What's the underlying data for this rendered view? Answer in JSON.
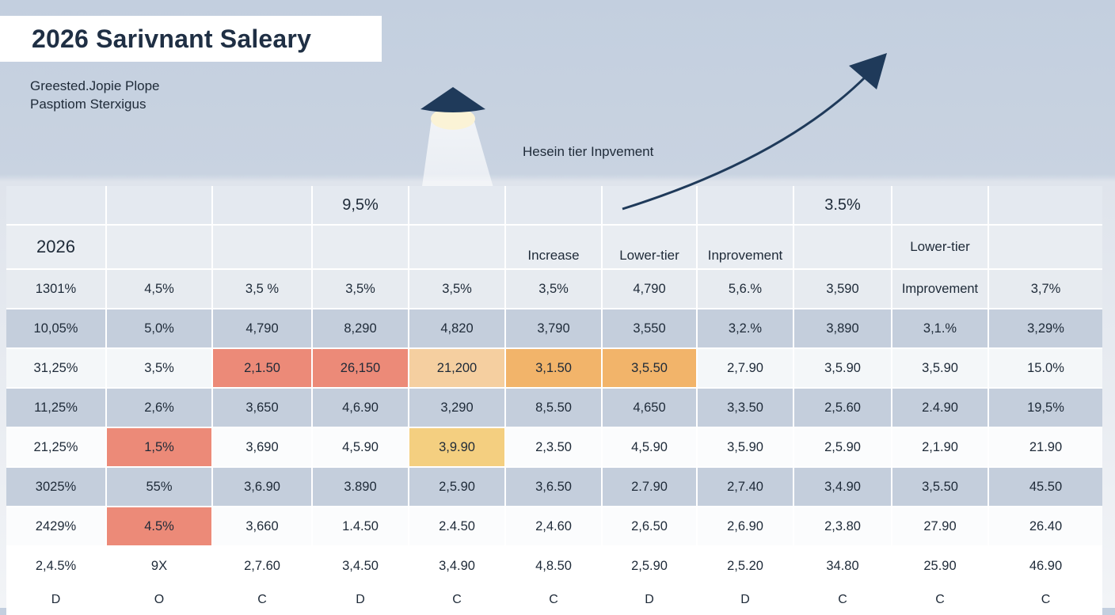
{
  "title": "2026 Sarivnant Saleary",
  "subtitle_lines": [
    "Greested.Jopie Plope",
    "Pasptiom Sterxigus"
  ],
  "annotation": "Hesein tier Inpvement",
  "colors": {
    "title_text": "#1f2f44",
    "arrow": "#1f3a5a",
    "lamp": "#1f3a5a",
    "red": "#ec8a78",
    "orange": "#f2b46a",
    "peach": "#f5cfa0",
    "yellow": "#f4cf80"
  },
  "icons": [
    "lamp-icon",
    "trend-arrow-icon"
  ],
  "chart_data": {
    "type": "table",
    "title": "2026 Sarivnant Saleary",
    "header_row_1": [
      "",
      "",
      "",
      "9,5%",
      "",
      "",
      "",
      "",
      "3.5%",
      "",
      ""
    ],
    "header_row_2": [
      "2026",
      "",
      "",
      "",
      "",
      "Increase",
      "Lower-tier",
      "Inprovement",
      "",
      "Lower-tier",
      ""
    ],
    "rows": [
      [
        "1301%",
        "4,5%",
        "3,5 %",
        "3,5%",
        "3,5%",
        "3,5%",
        "4,790",
        "5,6.%",
        "3,590",
        "Improvement",
        "3,7%"
      ],
      [
        "10,05%",
        "5,0%",
        "4,790",
        "8,290",
        "4,820",
        "3,790",
        "3,550",
        "3,2.%",
        "3,890",
        "3,1.%",
        "3,29%"
      ],
      [
        "31,25%",
        "3,5%",
        "2,1.50",
        "26,150",
        "21,200",
        "3,1.50",
        "3,5.50",
        "2,7.90",
        "3,5.90",
        "3,5.90",
        "15.0%"
      ],
      [
        "11,25%",
        "2,6%",
        "3,650",
        "4,6.90",
        "3,290",
        "8,5.50",
        "4,650",
        "3,3.50",
        "2,5.60",
        "2.4.90",
        "19,5%"
      ],
      [
        "21,25%",
        "1,5%",
        "3,690",
        "4,5.90",
        "3,9.90",
        "2,3.50",
        "4,5.90",
        "3,5.90",
        "2,5.90",
        "2,1.90",
        "21.90"
      ],
      [
        "3025%",
        "55%",
        "3,6.90",
        "3.890",
        "2,5.90",
        "3,6.50",
        "2.7.90",
        "2,7.40",
        "3,4.90",
        "3,5.50",
        "45.50"
      ],
      [
        "2429%",
        "4.5%",
        "3,660",
        "1.4.50",
        "2.4.50",
        "2,4.60",
        "2,6.50",
        "2,6.90",
        "2,3.80",
        "27.90",
        "26.40"
      ],
      [
        "2,4.5%",
        "9X",
        "2,7.60",
        "3,4.50",
        "3,4.90",
        "4,8.50",
        "2,5.90",
        "2,5.20",
        "34.80",
        "25.90",
        "46.90"
      ]
    ],
    "footer_codes": [
      "D",
      "O",
      "C",
      "D",
      "C",
      "C",
      "D",
      "D",
      "C",
      "C",
      "C"
    ],
    "highlights": [
      {
        "row": 2,
        "col": 2,
        "level": "red"
      },
      {
        "row": 2,
        "col": 3,
        "level": "red"
      },
      {
        "row": 2,
        "col": 4,
        "level": "peach"
      },
      {
        "row": 2,
        "col": 5,
        "level": "orange"
      },
      {
        "row": 2,
        "col": 6,
        "level": "orange"
      },
      {
        "row": 4,
        "col": 1,
        "level": "red"
      },
      {
        "row": 4,
        "col": 4,
        "level": "yellow"
      },
      {
        "row": 6,
        "col": 1,
        "level": "red"
      }
    ]
  }
}
